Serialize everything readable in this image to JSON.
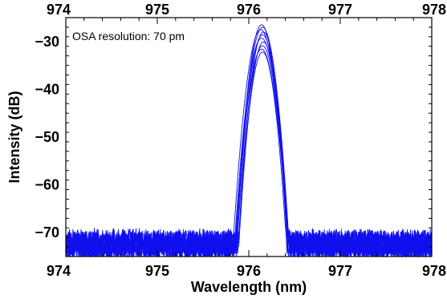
{
  "chart_data": {
    "type": "line",
    "xlabel": "Wavelength (nm)",
    "ylabel": "Intensity (dB)",
    "annotation": "OSA resolution: 70 pm",
    "xlim": [
      974,
      978
    ],
    "ylim": [
      -75,
      -25
    ],
    "x_ticks": [
      974,
      975,
      976,
      977,
      978
    ],
    "x_tick_labels": [
      "974",
      "975",
      "976",
      "977",
      "978"
    ],
    "x_top_tick_labels": [
      "974",
      "975",
      "976",
      "977",
      "978"
    ],
    "y_ticks": [
      -70,
      -60,
      -50,
      -40,
      -30
    ],
    "y_tick_labels": [
      "−70",
      "−60",
      "−50",
      "−40",
      "−30"
    ],
    "grid": false,
    "line_color": "#1010ee",
    "peak_center_nm": 976.15,
    "noise_floor_db": -72.5,
    "series": [
      {
        "peak_db": -26.5,
        "center_nm": 976.14
      },
      {
        "peak_db": -27.0,
        "center_nm": 976.15
      },
      {
        "peak_db": -27.5,
        "center_nm": 976.13
      },
      {
        "peak_db": -28.0,
        "center_nm": 976.16
      },
      {
        "peak_db": -28.6,
        "center_nm": 976.15
      },
      {
        "peak_db": -29.3,
        "center_nm": 976.14
      },
      {
        "peak_db": -30.1,
        "center_nm": 976.16
      },
      {
        "peak_db": -30.9,
        "center_nm": 976.15
      },
      {
        "peak_db": -31.6,
        "center_nm": 976.14
      },
      {
        "peak_db": -32.2,
        "center_nm": 976.15
      }
    ]
  }
}
